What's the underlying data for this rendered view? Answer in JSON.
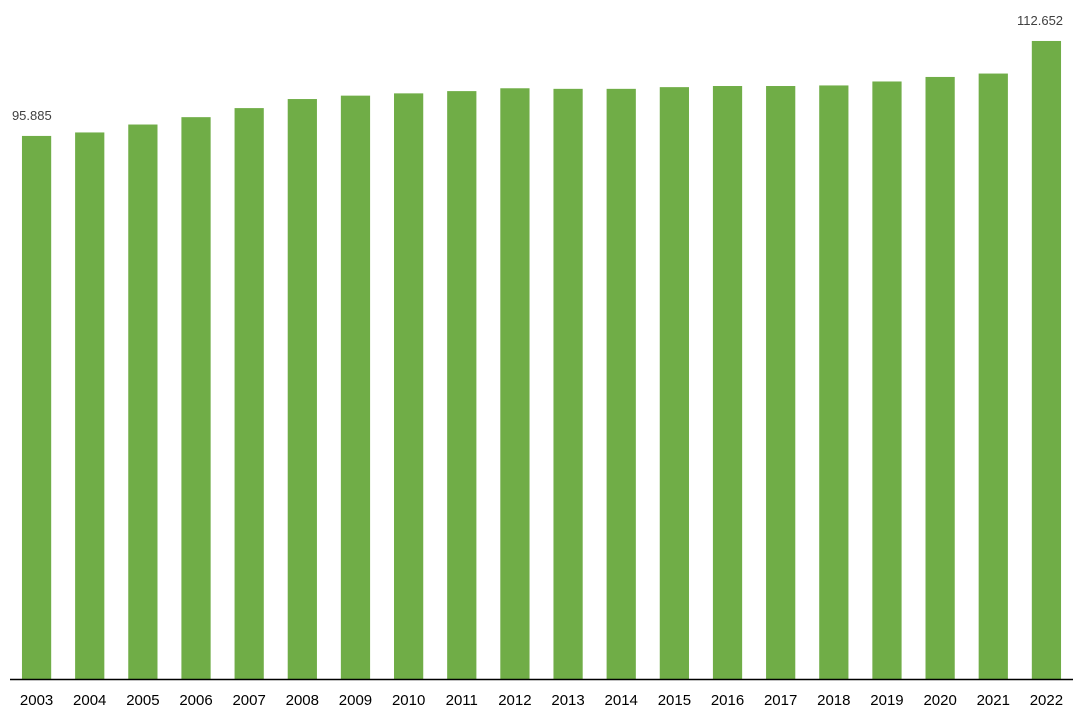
{
  "chart_data": {
    "type": "bar",
    "title": "",
    "xlabel": "",
    "ylabel": "",
    "categories": [
      "2003",
      "2004",
      "2005",
      "2006",
      "2007",
      "2008",
      "2009",
      "2010",
      "2011",
      "2012",
      "2013",
      "2014",
      "2015",
      "2016",
      "2017",
      "2018",
      "2019",
      "2020",
      "2021",
      "2022"
    ],
    "values": [
      95.885,
      96.5,
      97.9,
      99.2,
      100.8,
      102.4,
      103.0,
      103.4,
      103.8,
      104.3,
      104.2,
      104.2,
      104.5,
      104.7,
      104.7,
      104.8,
      105.5,
      106.3,
      106.9,
      112.652
    ],
    "data_labels": [
      {
        "index": 0,
        "text": "95.885"
      },
      {
        "index": 19,
        "text": "112.652"
      }
    ],
    "ylim": [
      0,
      113
    ],
    "grid": false,
    "legend": "none",
    "bar_color": "#70ad47",
    "axis_color": "#000000"
  }
}
